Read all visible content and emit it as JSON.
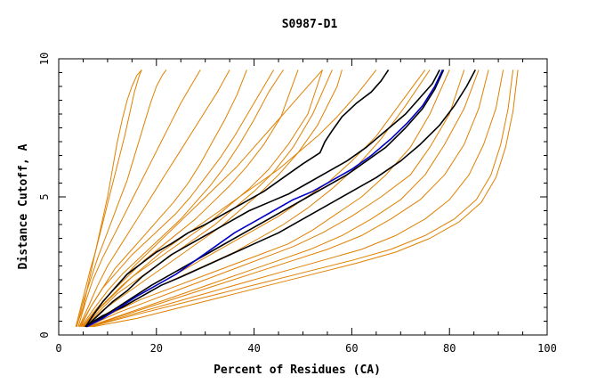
{
  "chart_data": {
    "type": "line",
    "title": "S0987-D1",
    "xlabel": "Percent of Residues (CA)",
    "ylabel": "Distance Cutoff, A",
    "xlim": [
      0,
      100
    ],
    "ylim": [
      0,
      10
    ],
    "x_ticks": [
      "0",
      "20",
      "40",
      "60",
      "80",
      "100"
    ],
    "y_ticks": [
      "0",
      "5",
      "10"
    ],
    "grid": false,
    "colors": {
      "orange": "#e08000",
      "black": "#000000",
      "blue": "#0000c8"
    },
    "series": [
      {
        "color": "orange",
        "x": [
          3.6,
          5,
          6,
          7,
          8,
          9,
          10,
          10.8,
          11.5,
          12,
          13,
          14,
          15,
          16,
          17
        ],
        "y": [
          0.3,
          1,
          1.8,
          2.6,
          3.4,
          4.2,
          5,
          5.8,
          6.5,
          7,
          7.8,
          8.5,
          9,
          9.4,
          9.6
        ]
      },
      {
        "color": "orange",
        "x": [
          3.5,
          4.5,
          5.5,
          6.5,
          7.5,
          8.5,
          9.5,
          10.5,
          11.5,
          12.5,
          13.5,
          14.5,
          15.5,
          16.5,
          17
        ],
        "y": [
          0.3,
          1,
          1.7,
          2.4,
          3,
          3.7,
          4.4,
          5.1,
          5.8,
          6.5,
          7.2,
          8,
          8.8,
          9.4,
          9.6
        ]
      },
      {
        "color": "orange",
        "x": [
          3.7,
          5,
          6.5,
          8,
          9.5,
          11,
          12.5,
          14,
          15.2,
          16.4,
          17.6,
          18.8,
          20,
          21.2,
          22
        ],
        "y": [
          0.3,
          1.2,
          2,
          2.8,
          3.5,
          4.2,
          4.9,
          5.6,
          6.3,
          7,
          7.7,
          8.4,
          9,
          9.4,
          9.6
        ]
      },
      {
        "color": "orange",
        "x": [
          4,
          5.5,
          7,
          9,
          11,
          13,
          15,
          17,
          19,
          21,
          23,
          25,
          27,
          29
        ],
        "y": [
          0.3,
          1.2,
          2,
          2.8,
          3.5,
          4.2,
          4.9,
          5.6,
          6.3,
          7,
          7.7,
          8.4,
          9,
          9.6
        ]
      },
      {
        "color": "orange",
        "x": [
          4.2,
          6,
          8,
          10,
          12.5,
          15,
          17.5,
          20,
          22.5,
          25,
          27.5,
          30,
          32.5,
          35
        ],
        "y": [
          0.3,
          1,
          1.8,
          2.5,
          3.2,
          3.9,
          4.6,
          5.3,
          6,
          6.7,
          7.4,
          8.1,
          8.8,
          9.6
        ]
      },
      {
        "color": "orange",
        "x": [
          4.5,
          6.5,
          9,
          11.5,
          14.5,
          17.5,
          20.5,
          23.5,
          26.5,
          29,
          31.5,
          34,
          36.5,
          38.5
        ],
        "y": [
          0.3,
          1,
          1.7,
          2.4,
          3,
          3.6,
          4.2,
          4.8,
          5.5,
          6.2,
          7,
          7.8,
          8.7,
          9.6
        ]
      },
      {
        "color": "orange",
        "x": [
          4.3,
          6.5,
          9,
          12,
          15,
          18,
          21,
          24,
          27,
          30,
          33,
          36,
          39,
          42,
          44
        ],
        "y": [
          0.3,
          1,
          1.7,
          2.3,
          2.9,
          3.4,
          3.9,
          4.4,
          5,
          5.7,
          6.4,
          7.2,
          8.1,
          9,
          9.6
        ]
      },
      {
        "color": "orange",
        "x": [
          4.6,
          7,
          10,
          13,
          16,
          19,
          22,
          25,
          28,
          31,
          34,
          37,
          40,
          43,
          46
        ],
        "y": [
          0.3,
          0.9,
          1.6,
          2.2,
          2.7,
          3.2,
          3.7,
          4.2,
          4.8,
          5.4,
          6.1,
          6.9,
          7.8,
          8.8,
          9.6
        ]
      },
      {
        "color": "orange",
        "x": [
          4.8,
          7.5,
          10.5,
          14,
          17.5,
          21,
          24.5,
          28,
          31.5,
          35,
          38.5,
          42,
          45.5,
          49
        ],
        "y": [
          0.3,
          0.9,
          1.5,
          2.1,
          2.7,
          3.2,
          3.7,
          4.2,
          4.8,
          5.4,
          6.1,
          6.9,
          7.9,
          9.6
        ]
      },
      {
        "color": "orange",
        "x": [
          4.9,
          8,
          11.5,
          15,
          19,
          23,
          27,
          31,
          35,
          39,
          43,
          47,
          51,
          54
        ],
        "y": [
          0.3,
          0.9,
          1.5,
          2.1,
          2.6,
          3.1,
          3.6,
          4.1,
          4.7,
          5.3,
          6,
          6.9,
          8,
          9.6
        ]
      },
      {
        "color": "orange",
        "x": [
          5,
          8.5,
          12,
          16,
          20,
          24,
          28,
          32,
          36,
          40,
          44,
          48,
          52,
          56
        ],
        "y": [
          0.3,
          0.9,
          1.5,
          2,
          2.5,
          3,
          3.5,
          4,
          4.6,
          5.2,
          5.9,
          6.8,
          8,
          9.6
        ]
      },
      {
        "color": "orange",
        "x": [
          5.2,
          9,
          13,
          17,
          21,
          25,
          29,
          33,
          37,
          41,
          45,
          49,
          53,
          57,
          58
        ],
        "y": [
          0.3,
          0.9,
          1.4,
          1.9,
          2.4,
          2.9,
          3.4,
          3.9,
          4.5,
          5.1,
          5.8,
          6.6,
          7.6,
          9,
          9.6
        ]
      },
      {
        "color": "orange",
        "x": [
          5.3,
          10,
          15,
          20,
          25,
          30,
          35,
          40,
          45,
          50,
          55,
          60,
          65,
          70,
          75
        ],
        "y": [
          0.3,
          0.8,
          1.3,
          1.8,
          2.3,
          2.8,
          3.3,
          3.8,
          4.3,
          4.9,
          5.5,
          6.3,
          7.2,
          8.4,
          9.6
        ]
      },
      {
        "color": "orange",
        "x": [
          5.5,
          10.5,
          16,
          21,
          26,
          31,
          36,
          41,
          46,
          51,
          56,
          61,
          66,
          71,
          76
        ],
        "y": [
          0.3,
          0.8,
          1.3,
          1.8,
          2.2,
          2.6,
          3,
          3.5,
          4,
          4.6,
          5.3,
          6.1,
          7.1,
          8.3,
          9.6
        ]
      },
      {
        "color": "orange",
        "x": [
          5.6,
          11,
          17,
          23,
          29,
          35,
          41,
          47,
          52,
          57,
          62,
          67,
          72,
          76,
          80
        ],
        "y": [
          0.3,
          0.8,
          1.3,
          1.7,
          2.1,
          2.5,
          2.9,
          3.3,
          3.8,
          4.4,
          5,
          5.8,
          6.8,
          8,
          9.6
        ]
      },
      {
        "color": "orange",
        "x": [
          5.8,
          12,
          18,
          24,
          30,
          36,
          42,
          48,
          54,
          60,
          66,
          72,
          76,
          80,
          83
        ],
        "y": [
          0.3,
          0.8,
          1.2,
          1.6,
          2,
          2.4,
          2.8,
          3.2,
          3.7,
          4.3,
          5,
          5.8,
          6.8,
          8,
          9.6
        ]
      },
      {
        "color": "orange",
        "x": [
          6,
          12.5,
          19,
          25.5,
          32,
          38.5,
          45,
          51.5,
          58,
          64,
          70,
          75,
          79,
          83,
          86
        ],
        "y": [
          0.3,
          0.7,
          1.1,
          1.5,
          1.9,
          2.3,
          2.7,
          3.1,
          3.6,
          4.2,
          4.9,
          5.8,
          6.9,
          8.2,
          9.6
        ]
      },
      {
        "color": "orange",
        "x": [
          6.2,
          13,
          20,
          27,
          34,
          41,
          48,
          55,
          62,
          68,
          74,
          79,
          83,
          86,
          88
        ],
        "y": [
          0.3,
          0.7,
          1.1,
          1.5,
          1.9,
          2.3,
          2.7,
          3.1,
          3.6,
          4.2,
          4.9,
          5.8,
          6.9,
          8.2,
          9.6
        ]
      },
      {
        "color": "orange",
        "x": [
          6.4,
          14,
          22,
          30,
          38,
          46,
          54,
          62,
          69,
          75,
          80,
          84,
          87,
          89.5,
          91
        ],
        "y": [
          0.3,
          0.7,
          1.1,
          1.5,
          1.9,
          2.3,
          2.7,
          3.1,
          3.6,
          4.2,
          4.9,
          5.8,
          6.9,
          8.2,
          9.6
        ]
      },
      {
        "color": "orange",
        "x": [
          6.6,
          15,
          24,
          33,
          42,
          51,
          60,
          68,
          75,
          81,
          85.5,
          88.5,
          90.5,
          92,
          93
        ],
        "y": [
          0.3,
          0.7,
          1.1,
          1.5,
          1.9,
          2.3,
          2.7,
          3.1,
          3.6,
          4.2,
          4.9,
          5.8,
          6.9,
          8.2,
          9.6
        ]
      },
      {
        "color": "orange",
        "x": [
          7,
          16,
          25,
          34,
          43,
          52,
          61,
          69,
          76,
          82,
          86.5,
          89.5,
          91.5,
          93,
          94
        ],
        "y": [
          0.3,
          0.6,
          1,
          1.4,
          1.8,
          2.2,
          2.6,
          3,
          3.5,
          4.1,
          4.8,
          5.7,
          6.8,
          8.1,
          9.6
        ]
      },
      {
        "color": "orange",
        "x": [
          5,
          9,
          13,
          17,
          21,
          25,
          29,
          33,
          37,
          41,
          45,
          49,
          53,
          57,
          61,
          65
        ],
        "y": [
          0.3,
          1.1,
          1.8,
          2.4,
          3,
          3.5,
          4,
          4.5,
          5,
          5.5,
          6,
          6.6,
          7.2,
          7.9,
          8.7,
          9.6
        ]
      },
      {
        "color": "orange",
        "x": [
          5.1,
          8.5,
          12,
          15.5,
          19,
          22.5,
          26,
          29.5,
          33,
          36.5,
          40,
          43.5,
          47,
          50.5,
          54
        ],
        "y": [
          0.3,
          1.1,
          1.8,
          2.5,
          3.1,
          3.7,
          4.3,
          4.9,
          5.5,
          6.1,
          6.8,
          7.5,
          8.2,
          8.9,
          9.6
        ]
      },
      {
        "color": "black",
        "x": [
          5.5,
          7,
          9,
          11.5,
          14,
          17,
          20,
          23,
          26.5,
          30,
          34,
          38,
          42,
          46,
          50,
          53.5,
          54.5,
          56,
          58,
          61,
          64,
          66,
          67.5
        ],
        "y": [
          0.3,
          0.7,
          1.2,
          1.7,
          2.2,
          2.6,
          3,
          3.3,
          3.7,
          4,
          4.4,
          4.8,
          5.2,
          5.7,
          6.2,
          6.6,
          7,
          7.4,
          7.9,
          8.4,
          8.8,
          9.2,
          9.6
        ]
      },
      {
        "color": "black",
        "x": [
          5.6,
          8,
          11,
          14,
          17,
          20,
          23,
          27,
          31,
          35,
          39,
          43,
          47,
          51,
          55,
          59,
          63,
          67,
          71,
          74,
          76.5,
          78
        ],
        "y": [
          0.3,
          0.7,
          1.2,
          1.6,
          2.1,
          2.5,
          2.9,
          3.3,
          3.7,
          4.1,
          4.5,
          4.8,
          5.1,
          5.5,
          5.9,
          6.3,
          6.8,
          7.4,
          8,
          8.6,
          9.1,
          9.6
        ]
      },
      {
        "color": "black",
        "x": [
          5.6,
          8.5,
          12,
          15.5,
          19,
          23,
          27,
          31,
          35,
          39,
          43,
          47,
          51,
          55,
          59,
          63,
          67,
          71,
          74.5,
          77,
          78.8
        ],
        "y": [
          0.3,
          0.6,
          1,
          1.4,
          1.8,
          2.2,
          2.6,
          3,
          3.4,
          3.8,
          4.2,
          4.6,
          5,
          5.4,
          5.8,
          6.3,
          6.8,
          7.5,
          8.2,
          8.9,
          9.6
        ]
      },
      {
        "color": "black",
        "x": [
          5.4,
          9,
          13,
          17,
          21,
          25,
          30,
          35,
          40,
          45,
          50,
          55,
          60,
          65,
          70,
          74,
          78,
          81,
          83.5,
          85.3
        ],
        "y": [
          0.3,
          0.7,
          1,
          1.4,
          1.8,
          2.1,
          2.5,
          2.9,
          3.3,
          3.7,
          4.2,
          4.7,
          5.2,
          5.7,
          6.3,
          6.9,
          7.6,
          8.3,
          9,
          9.6
        ]
      },
      {
        "color": "blue",
        "x": [
          5.8,
          9,
          12.5,
          16,
          20,
          24,
          28,
          32,
          36,
          40,
          44,
          48,
          52,
          56,
          60,
          64,
          68,
          71.5,
          74.5,
          77,
          78.6
        ],
        "y": [
          0.3,
          0.6,
          1,
          1.4,
          1.8,
          2.2,
          2.7,
          3.2,
          3.7,
          4.1,
          4.5,
          4.9,
          5.2,
          5.6,
          6,
          6.5,
          7.1,
          7.7,
          8.3,
          9,
          9.6
        ]
      }
    ]
  }
}
